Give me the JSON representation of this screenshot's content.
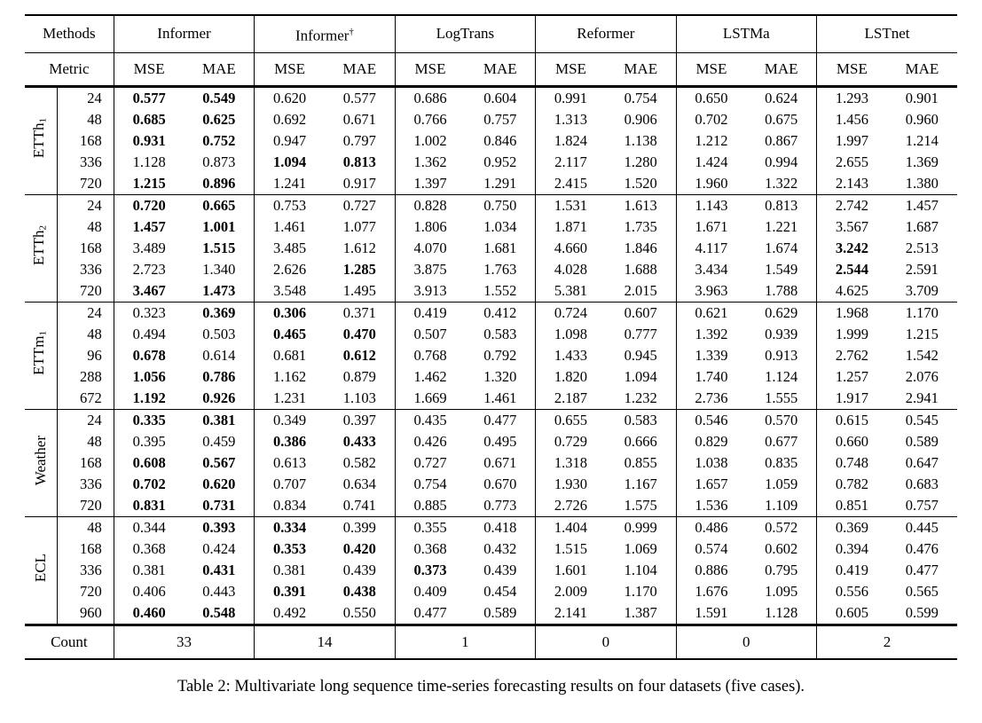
{
  "caption": "Table 2: Multivariate long sequence time-series forecasting results on four datasets (five cases).",
  "header": {
    "methods_label": "Methods",
    "metric_label": "Metric",
    "metric_cols": [
      "MSE",
      "MAE"
    ],
    "methods": [
      {
        "label": "Informer",
        "sup": ""
      },
      {
        "label": "Informer",
        "sup": "†"
      },
      {
        "label": "LogTrans",
        "sup": ""
      },
      {
        "label": "Reformer",
        "sup": ""
      },
      {
        "label": "LSTMa",
        "sup": ""
      },
      {
        "label": "LSTnet",
        "sup": ""
      }
    ]
  },
  "groups": [
    {
      "label": "ETTh",
      "sub": "1",
      "rows": [
        {
          "h": "24",
          "vals": [
            "0.577",
            "0.549",
            "0.620",
            "0.577",
            "0.686",
            "0.604",
            "0.991",
            "0.754",
            "0.650",
            "0.624",
            "1.293",
            "0.901"
          ],
          "bold": [
            0,
            1
          ]
        },
        {
          "h": "48",
          "vals": [
            "0.685",
            "0.625",
            "0.692",
            "0.671",
            "0.766",
            "0.757",
            "1.313",
            "0.906",
            "0.702",
            "0.675",
            "1.456",
            "0.960"
          ],
          "bold": [
            0,
            1
          ]
        },
        {
          "h": "168",
          "vals": [
            "0.931",
            "0.752",
            "0.947",
            "0.797",
            "1.002",
            "0.846",
            "1.824",
            "1.138",
            "1.212",
            "0.867",
            "1.997",
            "1.214"
          ],
          "bold": [
            0,
            1
          ]
        },
        {
          "h": "336",
          "vals": [
            "1.128",
            "0.873",
            "1.094",
            "0.813",
            "1.362",
            "0.952",
            "2.117",
            "1.280",
            "1.424",
            "0.994",
            "2.655",
            "1.369"
          ],
          "bold": [
            2,
            3
          ]
        },
        {
          "h": "720",
          "vals": [
            "1.215",
            "0.896",
            "1.241",
            "0.917",
            "1.397",
            "1.291",
            "2.415",
            "1.520",
            "1.960",
            "1.322",
            "2.143",
            "1.380"
          ],
          "bold": [
            0,
            1
          ]
        }
      ]
    },
    {
      "label": "ETTh",
      "sub": "2",
      "rows": [
        {
          "h": "24",
          "vals": [
            "0.720",
            "0.665",
            "0.753",
            "0.727",
            "0.828",
            "0.750",
            "1.531",
            "1.613",
            "1.143",
            "0.813",
            "2.742",
            "1.457"
          ],
          "bold": [
            0,
            1
          ]
        },
        {
          "h": "48",
          "vals": [
            "1.457",
            "1.001",
            "1.461",
            "1.077",
            "1.806",
            "1.034",
            "1.871",
            "1.735",
            "1.671",
            "1.221",
            "3.567",
            "1.687"
          ],
          "bold": [
            0,
            1
          ]
        },
        {
          "h": "168",
          "vals": [
            "3.489",
            "1.515",
            "3.485",
            "1.612",
            "4.070",
            "1.681",
            "4.660",
            "1.846",
            "4.117",
            "1.674",
            "3.242",
            "2.513"
          ],
          "bold": [
            1,
            10
          ]
        },
        {
          "h": "336",
          "vals": [
            "2.723",
            "1.340",
            "2.626",
            "1.285",
            "3.875",
            "1.763",
            "4.028",
            "1.688",
            "3.434",
            "1.549",
            "2.544",
            "2.591"
          ],
          "bold": [
            3,
            10
          ]
        },
        {
          "h": "720",
          "vals": [
            "3.467",
            "1.473",
            "3.548",
            "1.495",
            "3.913",
            "1.552",
            "5.381",
            "2.015",
            "3.963",
            "1.788",
            "4.625",
            "3.709"
          ],
          "bold": [
            0,
            1
          ]
        }
      ]
    },
    {
      "label": "ETTm",
      "sub": "1",
      "rows": [
        {
          "h": "24",
          "vals": [
            "0.323",
            "0.369",
            "0.306",
            "0.371",
            "0.419",
            "0.412",
            "0.724",
            "0.607",
            "0.621",
            "0.629",
            "1.968",
            "1.170"
          ],
          "bold": [
            1,
            2
          ]
        },
        {
          "h": "48",
          "vals": [
            "0.494",
            "0.503",
            "0.465",
            "0.470",
            "0.507",
            "0.583",
            "1.098",
            "0.777",
            "1.392",
            "0.939",
            "1.999",
            "1.215"
          ],
          "bold": [
            2,
            3
          ]
        },
        {
          "h": "96",
          "vals": [
            "0.678",
            "0.614",
            "0.681",
            "0.612",
            "0.768",
            "0.792",
            "1.433",
            "0.945",
            "1.339",
            "0.913",
            "2.762",
            "1.542"
          ],
          "bold": [
            0,
            3
          ]
        },
        {
          "h": "288",
          "vals": [
            "1.056",
            "0.786",
            "1.162",
            "0.879",
            "1.462",
            "1.320",
            "1.820",
            "1.094",
            "1.740",
            "1.124",
            "1.257",
            "2.076"
          ],
          "bold": [
            0,
            1
          ]
        },
        {
          "h": "672",
          "vals": [
            "1.192",
            "0.926",
            "1.231",
            "1.103",
            "1.669",
            "1.461",
            "2.187",
            "1.232",
            "2.736",
            "1.555",
            "1.917",
            "2.941"
          ],
          "bold": [
            0,
            1
          ]
        }
      ]
    },
    {
      "label": "Weather",
      "sub": "",
      "rows": [
        {
          "h": "24",
          "vals": [
            "0.335",
            "0.381",
            "0.349",
            "0.397",
            "0.435",
            "0.477",
            "0.655",
            "0.583",
            "0.546",
            "0.570",
            "0.615",
            "0.545"
          ],
          "bold": [
            0,
            1
          ]
        },
        {
          "h": "48",
          "vals": [
            "0.395",
            "0.459",
            "0.386",
            "0.433",
            "0.426",
            "0.495",
            "0.729",
            "0.666",
            "0.829",
            "0.677",
            "0.660",
            "0.589"
          ],
          "bold": [
            2,
            3
          ]
        },
        {
          "h": "168",
          "vals": [
            "0.608",
            "0.567",
            "0.613",
            "0.582",
            "0.727",
            "0.671",
            "1.318",
            "0.855",
            "1.038",
            "0.835",
            "0.748",
            "0.647"
          ],
          "bold": [
            0,
            1
          ]
        },
        {
          "h": "336",
          "vals": [
            "0.702",
            "0.620",
            "0.707",
            "0.634",
            "0.754",
            "0.670",
            "1.930",
            "1.167",
            "1.657",
            "1.059",
            "0.782",
            "0.683"
          ],
          "bold": [
            0,
            1
          ]
        },
        {
          "h": "720",
          "vals": [
            "0.831",
            "0.731",
            "0.834",
            "0.741",
            "0.885",
            "0.773",
            "2.726",
            "1.575",
            "1.536",
            "1.109",
            "0.851",
            "0.757"
          ],
          "bold": [
            0,
            1
          ]
        }
      ]
    },
    {
      "label": "ECL",
      "sub": "",
      "rows": [
        {
          "h": "48",
          "vals": [
            "0.344",
            "0.393",
            "0.334",
            "0.399",
            "0.355",
            "0.418",
            "1.404",
            "0.999",
            "0.486",
            "0.572",
            "0.369",
            "0.445"
          ],
          "bold": [
            1,
            2
          ]
        },
        {
          "h": "168",
          "vals": [
            "0.368",
            "0.424",
            "0.353",
            "0.420",
            "0.368",
            "0.432",
            "1.515",
            "1.069",
            "0.574",
            "0.602",
            "0.394",
            "0.476"
          ],
          "bold": [
            2,
            3
          ]
        },
        {
          "h": "336",
          "vals": [
            "0.381",
            "0.431",
            "0.381",
            "0.439",
            "0.373",
            "0.439",
            "1.601",
            "1.104",
            "0.886",
            "0.795",
            "0.419",
            "0.477"
          ],
          "bold": [
            1,
            4
          ]
        },
        {
          "h": "720",
          "vals": [
            "0.406",
            "0.443",
            "0.391",
            "0.438",
            "0.409",
            "0.454",
            "2.009",
            "1.170",
            "1.676",
            "1.095",
            "0.556",
            "0.565"
          ],
          "bold": [
            2,
            3
          ]
        },
        {
          "h": "960",
          "vals": [
            "0.460",
            "0.548",
            "0.492",
            "0.550",
            "0.477",
            "0.589",
            "2.141",
            "1.387",
            "1.591",
            "1.128",
            "0.605",
            "0.599"
          ],
          "bold": [
            0,
            1
          ]
        }
      ]
    }
  ],
  "count": {
    "label": "Count",
    "values": [
      "33",
      "14",
      "1",
      "0",
      "0",
      "2"
    ]
  }
}
